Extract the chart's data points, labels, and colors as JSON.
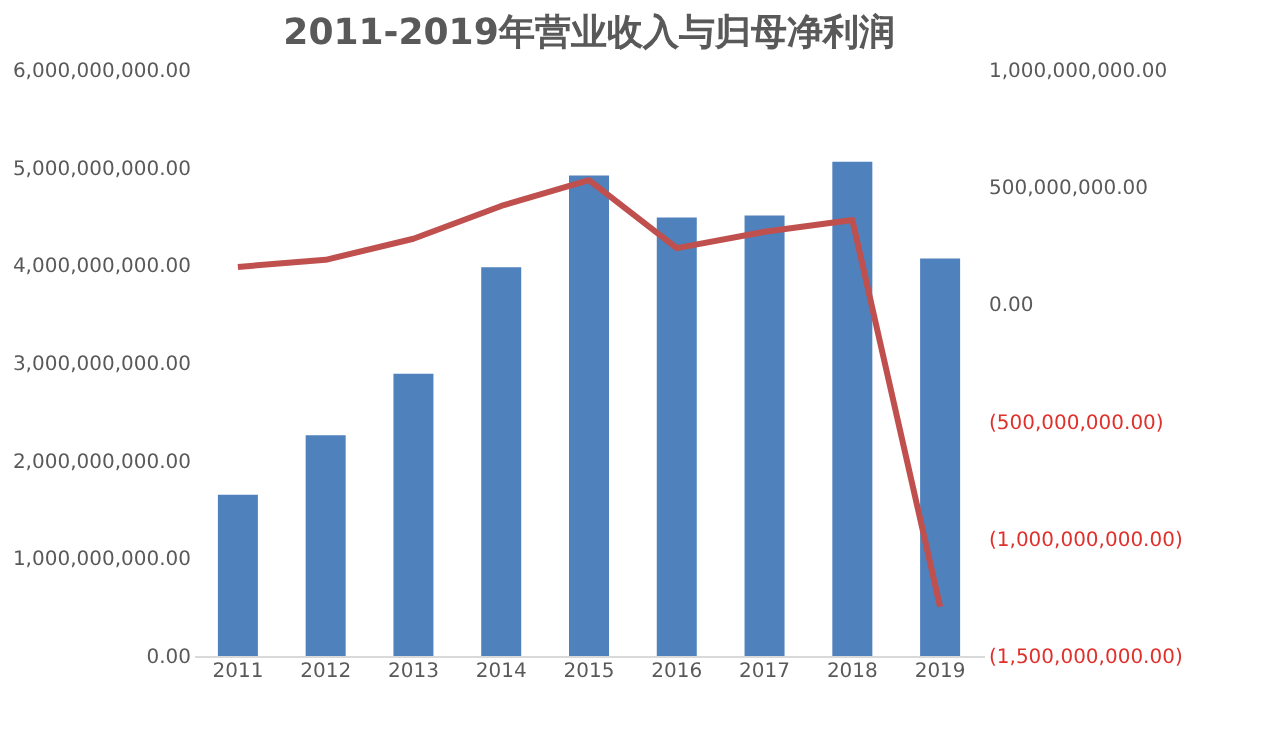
{
  "chart_data": {
    "type": "bar",
    "title": "2011-2019年营业收入与归母净利润",
    "categories": [
      "2011",
      "2012",
      "2013",
      "2014",
      "2015",
      "2016",
      "2017",
      "2018",
      "2019"
    ],
    "series": [
      {
        "color": "#4f81bd",
        "values": [
          1650000000,
          2260000000,
          2890000000,
          3980000000,
          4920000000,
          4490000000,
          4510000000,
          5060000000,
          4070000000
        ]
      },
      {
        "type": "line",
        "axis": "y2",
        "color": "#c0504d",
        "values": [
          160000000,
          190000000,
          280000000,
          420000000,
          530000000,
          240000000,
          310000000,
          360000000,
          -1290000000
        ]
      }
    ],
    "ylim": [
      0,
      6000000000
    ],
    "yticks": [
      {
        "value": 0,
        "label": "0.00"
      },
      {
        "value": 1000000000,
        "label": "1,000,000,000.00"
      },
      {
        "value": 2000000000,
        "label": "2,000,000,000.00"
      },
      {
        "value": 3000000000,
        "label": "3,000,000,000.00"
      },
      {
        "value": 4000000000,
        "label": "4,000,000,000.00"
      },
      {
        "value": 5000000000,
        "label": "5,000,000,000.00"
      },
      {
        "value": 6000000000,
        "label": "6,000,000,000.00"
      }
    ],
    "y2lim": [
      -1500000000,
      1000000000
    ],
    "y2ticks": [
      {
        "value": -1500000000,
        "label": "(1,500,000,000.00)"
      },
      {
        "value": -1000000000,
        "label": "(1,000,000,000.00)"
      },
      {
        "value": -500000000,
        "label": "(500,000,000.00)"
      },
      {
        "value": 0,
        "label": "0.00"
      },
      {
        "value": 500000000,
        "label": "500,000,000.00"
      },
      {
        "value": 1000000000,
        "label": "1,000,000,000.00"
      }
    ],
    "grid": false,
    "legend": false,
    "marker": "none",
    "line_style": "solid"
  }
}
